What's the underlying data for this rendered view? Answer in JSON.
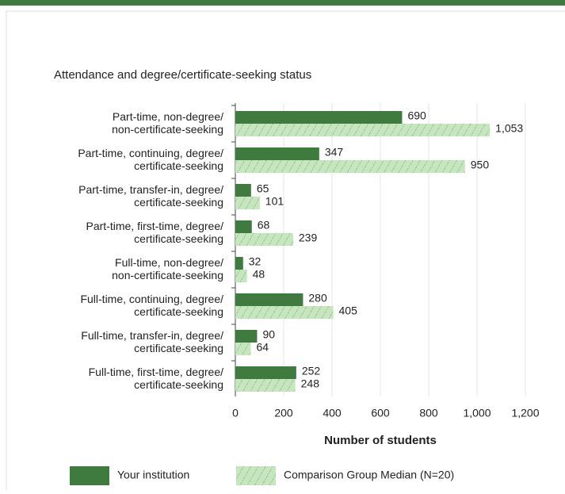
{
  "chart_data": {
    "type": "bar",
    "orientation": "horizontal",
    "title": "Attendance and degree/certificate-seeking status",
    "xlabel": "Number of students",
    "categories": [
      "Part-time, non-degree/\nnon-certificate-seeking",
      "Part-time, continuing, degree/\ncertificate-seeking",
      "Part-time, transfer-in, degree/\ncertificate-seeking",
      "Part-time, first-time, degree/\ncertificate-seeking",
      "Full-time, non-degree/\nnon-certificate-seeking",
      "Full-time, continuing, degree/\ncertificate-seeking",
      "Full-time, transfer-in, degree/\ncertificate-seeking",
      "Full-time, first-time, degree/\ncertificate-seeking"
    ],
    "series": [
      {
        "name": "Your institution",
        "color": "#3f7a3f",
        "values": [
          690,
          347,
          65,
          68,
          32,
          280,
          90,
          252
        ],
        "value_labels": [
          "690",
          "347",
          "65",
          "68",
          "32",
          "280",
          "90",
          "252"
        ]
      },
      {
        "name": "Comparison Group Median (N=20)",
        "color": "#c6e6bf",
        "pattern": "hatched",
        "values": [
          1053,
          950,
          101,
          239,
          48,
          405,
          64,
          248
        ],
        "value_labels": [
          "1,053",
          "950",
          "101",
          "239",
          "48",
          "405",
          "64",
          "248"
        ]
      }
    ],
    "xlim": [
      0,
      1200
    ],
    "xticks": [
      0,
      200,
      400,
      600,
      800,
      {
        "value": 1000,
        "label": "1,000"
      },
      {
        "value": 1200,
        "label": "1,200"
      }
    ],
    "grid": true,
    "legend": "bottom"
  }
}
